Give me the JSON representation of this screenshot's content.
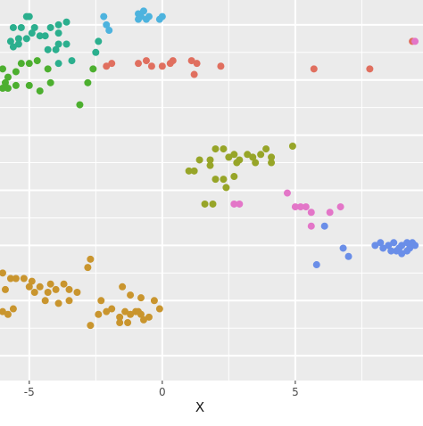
{
  "chart_data": {
    "type": "scatter",
    "title": "",
    "xlabel": "X",
    "ylabel": "",
    "x_ticks": [
      "-5",
      "0",
      "5"
    ],
    "x_tick_values": [
      -5,
      0,
      5
    ],
    "xlim": [
      -6.1,
      9.8
    ],
    "ylim": [
      -6.9,
      6.9
    ],
    "grid": true,
    "legend": "none",
    "series": [
      {
        "color": "#2BAF8E",
        "points": [
          [
            -5.1,
            6.3
          ],
          [
            -5.0,
            6.3
          ],
          [
            -4.8,
            5.9
          ],
          [
            -4.9,
            5.7
          ],
          [
            -5.3,
            5.9
          ],
          [
            -5.6,
            5.9
          ],
          [
            -4.6,
            5.6
          ],
          [
            -4.4,
            5.6
          ],
          [
            -3.9,
            6.0
          ],
          [
            -3.6,
            6.1
          ],
          [
            -3.9,
            5.7
          ],
          [
            -4.2,
            5.9
          ],
          [
            -5.1,
            5.5
          ],
          [
            -5.4,
            5.3
          ],
          [
            -5.4,
            5.5
          ],
          [
            -5.7,
            5.4
          ],
          [
            -3.9,
            5.3
          ],
          [
            -3.6,
            5.3
          ],
          [
            -4.3,
            5.1
          ],
          [
            -3.4,
            4.7
          ],
          [
            -3.9,
            4.6
          ],
          [
            -4.0,
            5.1
          ],
          [
            -2.4,
            5.4
          ],
          [
            -2.5,
            5.0
          ],
          [
            -5.6,
            5.2
          ]
        ]
      },
      {
        "color": "#4CAF2F",
        "points": [
          [
            -6.0,
            4.4
          ],
          [
            -5.8,
            4.1
          ],
          [
            -5.5,
            4.3
          ],
          [
            -5.9,
            3.9
          ],
          [
            -6.0,
            3.7
          ],
          [
            -5.8,
            3.7
          ],
          [
            -5.5,
            3.8
          ],
          [
            -5.3,
            4.6
          ],
          [
            -5.0,
            4.6
          ],
          [
            -4.7,
            4.7
          ],
          [
            -4.6,
            3.6
          ],
          [
            -4.3,
            4.4
          ],
          [
            -4.2,
            3.9
          ],
          [
            -5.0,
            3.8
          ],
          [
            -2.6,
            4.4
          ],
          [
            -2.8,
            3.9
          ],
          [
            -3.1,
            3.1
          ]
        ]
      },
      {
        "color": "#4DB3DE",
        "points": [
          [
            -2.2,
            6.3
          ],
          [
            -2.1,
            6.0
          ],
          [
            -2.0,
            5.8
          ],
          [
            -0.9,
            6.4
          ],
          [
            -0.8,
            6.3
          ],
          [
            -0.9,
            6.2
          ],
          [
            -0.7,
            6.5
          ],
          [
            -0.5,
            6.3
          ],
          [
            -0.6,
            6.2
          ],
          [
            -0.1,
            6.2
          ],
          [
            0.0,
            6.3
          ]
        ]
      },
      {
        "color": "#E06F5F",
        "points": [
          [
            -2.1,
            4.5
          ],
          [
            -1.9,
            4.6
          ],
          [
            -0.9,
            4.6
          ],
          [
            -0.6,
            4.7
          ],
          [
            -0.4,
            4.5
          ],
          [
            0.0,
            4.5
          ],
          [
            0.3,
            4.6
          ],
          [
            0.4,
            4.7
          ],
          [
            1.1,
            4.7
          ],
          [
            1.2,
            4.2
          ],
          [
            1.3,
            4.6
          ],
          [
            2.2,
            4.5
          ],
          [
            5.7,
            4.4
          ],
          [
            7.8,
            4.4
          ],
          [
            9.4,
            5.4
          ]
        ]
      },
      {
        "color": "#97A528",
        "points": [
          [
            1.0,
            0.7
          ],
          [
            1.2,
            0.7
          ],
          [
            1.4,
            1.1
          ],
          [
            1.8,
            1.1
          ],
          [
            2.0,
            1.5
          ],
          [
            2.3,
            1.5
          ],
          [
            2.5,
            1.2
          ],
          [
            2.7,
            1.3
          ],
          [
            2.8,
            1.0
          ],
          [
            2.9,
            1.1
          ],
          [
            3.2,
            1.3
          ],
          [
            3.4,
            1.2
          ],
          [
            3.5,
            1.0
          ],
          [
            3.7,
            1.3
          ],
          [
            3.9,
            1.5
          ],
          [
            4.1,
            1.2
          ],
          [
            4.1,
            1.0
          ],
          [
            4.9,
            1.6
          ],
          [
            2.3,
            0.4
          ],
          [
            2.4,
            0.1
          ],
          [
            2.7,
            0.5
          ],
          [
            2.0,
            0.4
          ],
          [
            1.9,
            -0.5
          ],
          [
            1.6,
            -0.5
          ],
          [
            1.8,
            0.9
          ]
        ]
      },
      {
        "color": "#E376C8",
        "points": [
          [
            2.7,
            -0.5
          ],
          [
            2.9,
            -0.5
          ],
          [
            4.7,
            -0.1
          ],
          [
            5.0,
            -0.6
          ],
          [
            5.2,
            -0.6
          ],
          [
            5.4,
            -0.6
          ],
          [
            5.6,
            -0.8
          ],
          [
            6.3,
            -0.8
          ],
          [
            6.7,
            -0.6
          ],
          [
            5.6,
            -1.3
          ],
          [
            9.5,
            5.4
          ]
        ]
      },
      {
        "color": "#6A8EE8",
        "points": [
          [
            8.0,
            -2.0
          ],
          [
            8.2,
            -1.9
          ],
          [
            8.3,
            -2.1
          ],
          [
            8.5,
            -2.0
          ],
          [
            8.6,
            -2.2
          ],
          [
            8.7,
            -1.9
          ],
          [
            8.9,
            -2.1
          ],
          [
            9.0,
            -2.0
          ],
          [
            9.2,
            -1.9
          ],
          [
            9.3,
            -2.1
          ],
          [
            9.4,
            -1.9
          ],
          [
            9.5,
            -2.0
          ],
          [
            8.8,
            -2.2
          ],
          [
            9.0,
            -2.3
          ],
          [
            9.2,
            -2.2
          ],
          [
            7.0,
            -2.4
          ],
          [
            6.8,
            -2.1
          ],
          [
            6.1,
            -1.3
          ],
          [
            5.8,
            -2.7
          ]
        ]
      },
      {
        "color": "#C9952E",
        "points": [
          [
            -6.0,
            -3.0
          ],
          [
            -5.7,
            -3.2
          ],
          [
            -5.5,
            -3.2
          ],
          [
            -5.2,
            -3.2
          ],
          [
            -4.9,
            -3.3
          ],
          [
            -4.6,
            -3.5
          ],
          [
            -4.2,
            -3.4
          ],
          [
            -4.0,
            -3.6
          ],
          [
            -3.7,
            -3.4
          ],
          [
            -3.5,
            -3.6
          ],
          [
            -3.2,
            -3.7
          ],
          [
            -4.8,
            -3.7
          ],
          [
            -5.0,
            -3.5
          ],
          [
            -4.3,
            -3.7
          ],
          [
            -2.7,
            -2.5
          ],
          [
            -2.8,
            -2.8
          ],
          [
            -3.5,
            -4.0
          ],
          [
            -3.9,
            -4.1
          ],
          [
            -4.4,
            -4.0
          ],
          [
            -5.9,
            -3.6
          ],
          [
            -6.0,
            -4.4
          ],
          [
            -5.8,
            -4.5
          ],
          [
            -5.6,
            -4.3
          ],
          [
            -2.3,
            -4.0
          ],
          [
            -2.1,
            -4.4
          ],
          [
            -2.4,
            -4.5
          ],
          [
            -1.9,
            -4.3
          ],
          [
            -1.6,
            -4.6
          ],
          [
            -1.4,
            -4.4
          ],
          [
            -1.2,
            -4.5
          ],
          [
            -1.0,
            -4.4
          ],
          [
            -0.8,
            -4.5
          ],
          [
            -0.7,
            -4.7
          ],
          [
            -1.3,
            -4.8
          ],
          [
            -1.6,
            -4.8
          ],
          [
            -0.9,
            -4.4
          ],
          [
            -1.5,
            -3.5
          ],
          [
            -1.2,
            -3.8
          ],
          [
            -0.8,
            -3.9
          ],
          [
            -0.3,
            -4.0
          ],
          [
            -0.1,
            -4.3
          ],
          [
            -0.5,
            -4.6
          ],
          [
            -2.7,
            -4.9
          ]
        ]
      }
    ]
  }
}
